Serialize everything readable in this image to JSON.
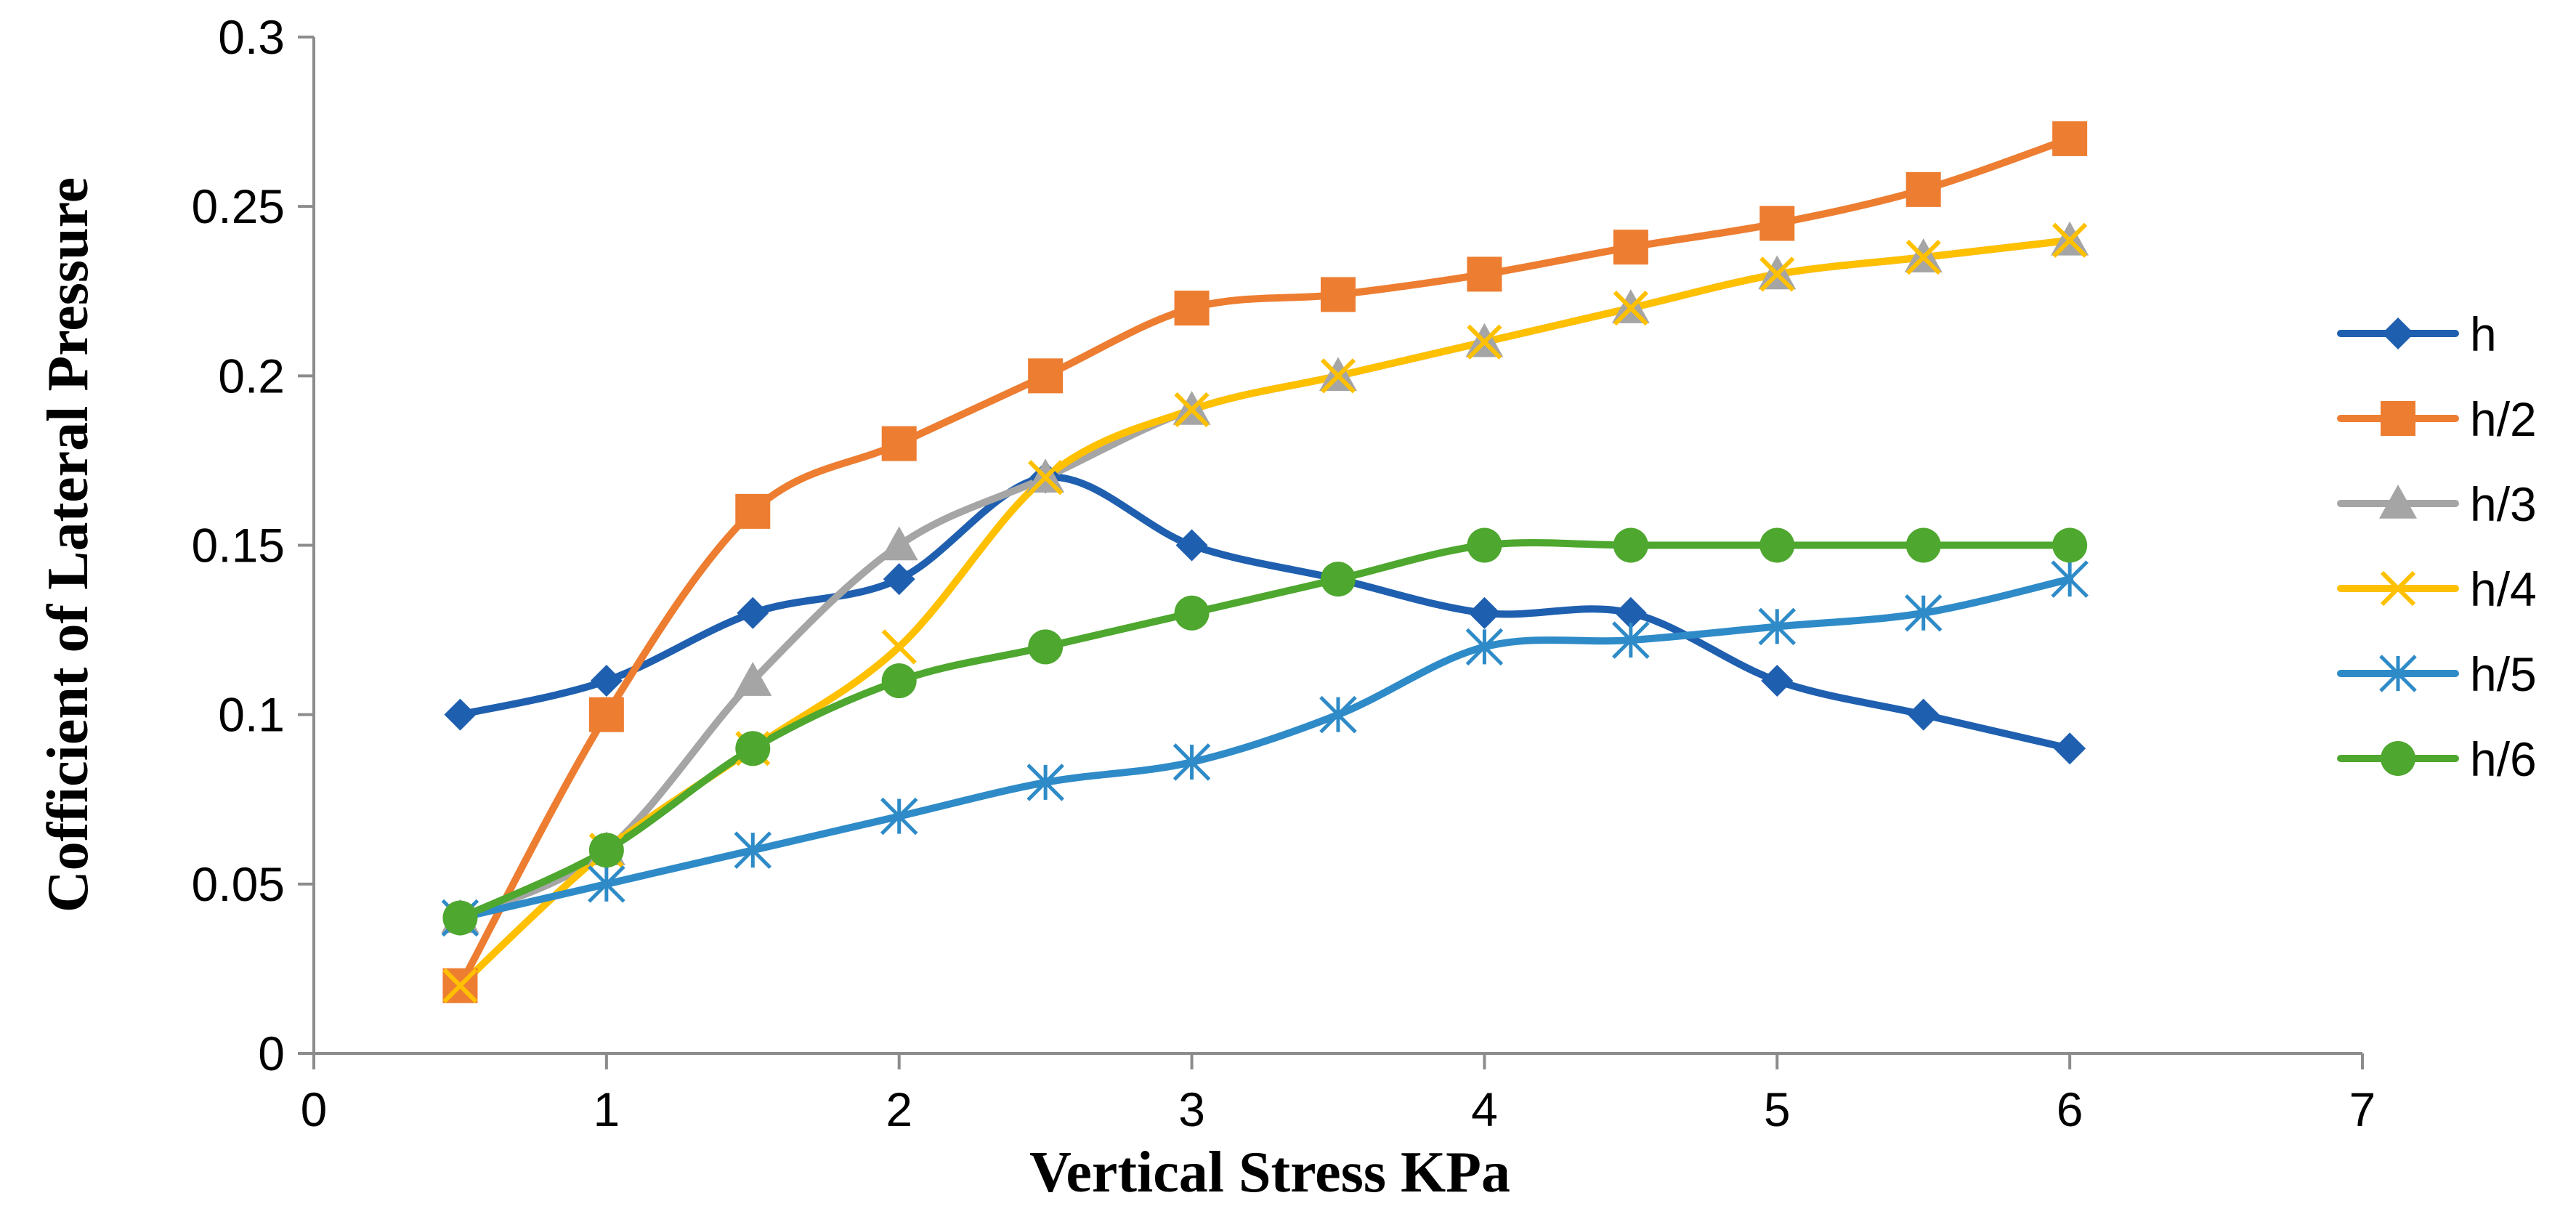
{
  "chart_data": {
    "type": "line",
    "smooth": true,
    "title": "",
    "xlabel": "Vertical Stress KPa",
    "ylabel": "Cofficient of Lateral Pressure",
    "xlim": [
      0,
      7
    ],
    "ylim": [
      0,
      0.3
    ],
    "xticks": [
      0,
      1,
      2,
      3,
      4,
      5,
      6,
      7
    ],
    "xtick_labels": [
      "0",
      "1",
      "2",
      "3",
      "4",
      "5",
      "6",
      "7"
    ],
    "yticks": [
      0,
      0.05,
      0.1,
      0.15,
      0.2,
      0.25,
      0.3
    ],
    "ytick_labels": [
      "0",
      "0.05",
      "0.1",
      "0.15",
      "0.2",
      "0.25",
      "0.3"
    ],
    "grid": false,
    "legend_position": "right",
    "x": [
      0.5,
      1,
      1.5,
      2,
      2.5,
      3,
      3.5,
      4,
      4.5,
      5,
      5.5,
      6
    ],
    "series": [
      {
        "name": "h",
        "color": "#1F5FAF",
        "marker": "diamond",
        "values": [
          0.1,
          0.11,
          0.13,
          0.14,
          0.17,
          0.15,
          0.14,
          0.13,
          0.13,
          0.11,
          0.1,
          0.09
        ]
      },
      {
        "name": "h/2",
        "color": "#ED7D31",
        "marker": "square",
        "values": [
          0.02,
          0.1,
          0.16,
          0.18,
          0.2,
          0.22,
          0.224,
          0.23,
          0.238,
          0.245,
          0.255,
          0.27
        ]
      },
      {
        "name": "h/3",
        "color": "#A5A5A5",
        "marker": "triangle",
        "values": [
          0.04,
          0.06,
          0.11,
          0.15,
          0.17,
          0.19,
          0.2,
          0.21,
          0.22,
          0.23,
          0.235,
          0.24
        ]
      },
      {
        "name": "h/4",
        "color": "#FFC000",
        "marker": "x",
        "values": [
          0.02,
          0.06,
          0.09,
          0.12,
          0.17,
          0.19,
          0.2,
          0.21,
          0.22,
          0.23,
          0.235,
          0.24
        ]
      },
      {
        "name": "h/5",
        "color": "#2E8BC8",
        "marker": "asterisk",
        "values": [
          0.04,
          0.05,
          0.06,
          0.07,
          0.08,
          0.086,
          0.1,
          0.12,
          0.122,
          0.126,
          0.13,
          0.14
        ]
      },
      {
        "name": "h/6",
        "color": "#4EA72E",
        "marker": "circle",
        "values": [
          0.04,
          0.06,
          0.09,
          0.11,
          0.12,
          0.13,
          0.14,
          0.15,
          0.15,
          0.15,
          0.15,
          0.15
        ]
      }
    ]
  }
}
